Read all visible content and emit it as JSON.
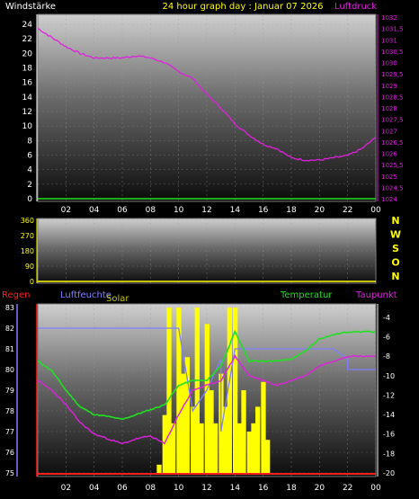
{
  "header": {
    "left_label": "Windstärke",
    "title": "24 hour graph day : Januar 07 2026",
    "right_label": "Luftdruck"
  },
  "colors": {
    "background": "#000000",
    "pressure": "#e020e0",
    "temperature": "#20e020",
    "dewpoint": "#e020e0",
    "humidity": "#7f7fff",
    "solar": "#ffff00",
    "rain": "#ff2020",
    "wind": "#20e020",
    "direction": "#ffff00",
    "regen_label": "#ff2020",
    "luftfeuchte_label": "#7f7fff",
    "solar_label": "#c8c800",
    "temperatur_label": "#20e020",
    "taupunkt_label": "#e020e0",
    "axis_left_text": "#ffffff",
    "axis_right_text": "#e020e0",
    "humidity_axis_text": "#ffffff",
    "direction_axis_text": "#ffff00"
  },
  "x_ticks": [
    "02",
    "04",
    "06",
    "08",
    "10",
    "12",
    "14",
    "16",
    "18",
    "20",
    "22",
    "00"
  ],
  "compass": [
    "N",
    "W",
    "S",
    "O",
    "N"
  ],
  "bottom_labels": {
    "regen": "Regen",
    "luftfeuchte": "Luftfeuchte",
    "solar": "Solar",
    "temperatur": "Temperatur",
    "taupunkt": "Taupunkt"
  },
  "chart_data": [
    {
      "type": "line",
      "name": "pressure-wind",
      "x_range": [
        0,
        24
      ],
      "left_axis": {
        "ticks": [
          "0",
          "2",
          "4",
          "6",
          "8",
          "10",
          "12",
          "14",
          "16",
          "18",
          "20",
          "22",
          "24"
        ],
        "ylim": [
          0,
          25
        ]
      },
      "right_axis": {
        "ticks": [
          "1024",
          "1024,5",
          "1025",
          "1025,5",
          "1026",
          "1026,5",
          "1027",
          "1027,5",
          "1028",
          "1028,5",
          "1029",
          "1029,5",
          "1030",
          "1030,5",
          "1031",
          "1031,5",
          "1032"
        ],
        "ylim": [
          1024,
          1032
        ]
      },
      "series": [
        {
          "name": "Luftdruck",
          "axis": "right",
          "x": [
            0,
            1,
            2,
            3,
            4,
            5,
            6,
            7,
            8,
            9,
            10,
            11,
            12,
            13,
            14,
            15,
            16,
            17,
            18,
            19,
            20,
            21,
            22,
            23,
            24
          ],
          "y": [
            1031.5,
            1031.1,
            1030.7,
            1030.4,
            1030.2,
            1030.2,
            1030.2,
            1030.3,
            1030.2,
            1030.0,
            1029.6,
            1029.3,
            1028.6,
            1028.0,
            1027.3,
            1026.8,
            1026.4,
            1026.2,
            1025.8,
            1025.7,
            1025.7,
            1025.8,
            1025.9,
            1026.2,
            1026.7
          ]
        },
        {
          "name": "Windstärke",
          "axis": "left",
          "x": [
            0,
            24
          ],
          "y": [
            0,
            0
          ]
        }
      ]
    },
    {
      "type": "line",
      "name": "wind-direction",
      "x_range": [
        0,
        24
      ],
      "y_axis": {
        "ticks": [
          "0",
          "90",
          "180",
          "270",
          "360"
        ],
        "ylim": [
          0,
          360
        ]
      },
      "series": [
        {
          "name": "Windrichtung",
          "x": [
            0,
            24
          ],
          "y": [
            0,
            0
          ]
        }
      ]
    },
    {
      "type": "line",
      "name": "temperature-humidity-solar",
      "x_range": [
        0,
        24
      ],
      "left_axis": {
        "ticks": [
          "75",
          "76",
          "77",
          "78",
          "79",
          "80",
          "81",
          "82",
          "83"
        ],
        "ylim": [
          75,
          83
        ]
      },
      "right_axis": {
        "ticks": [
          "-20",
          "-18",
          "-16",
          "-14",
          "-12",
          "-10",
          "-8",
          "-6",
          "-4"
        ],
        "ylim": [
          -20,
          -3
        ]
      },
      "series": [
        {
          "name": "Temperatur",
          "axis": "right",
          "x": [
            0,
            1,
            2,
            3,
            4,
            5,
            6,
            7,
            8,
            9,
            10,
            11,
            12,
            13,
            14,
            15,
            16,
            17,
            18,
            19,
            20,
            21,
            22,
            23,
            24
          ],
          "y": [
            -8.5,
            -9.5,
            -11.5,
            -13.2,
            -14.0,
            -14.2,
            -14.5,
            -14.0,
            -13.5,
            -13.0,
            -11.0,
            -10.5,
            -10.5,
            -9.0,
            -5.5,
            -8.5,
            -8.5,
            -8.5,
            -8.3,
            -7.5,
            -6.2,
            -5.8,
            -5.5,
            -5.5,
            -5.5
          ]
        },
        {
          "name": "Taupunkt",
          "axis": "right",
          "x": [
            0,
            1,
            2,
            3,
            4,
            5,
            6,
            7,
            8,
            9,
            10,
            11,
            12,
            13,
            14,
            15,
            16,
            17,
            18,
            19,
            20,
            21,
            22,
            23,
            24
          ],
          "y": [
            -10.5,
            -11.5,
            -13.0,
            -14.8,
            -16.0,
            -16.5,
            -17.0,
            -16.5,
            -16.2,
            -17.0,
            -14.0,
            -11.5,
            -11.0,
            -10.5,
            -8.0,
            -10.0,
            -10.5,
            -11.0,
            -10.5,
            -10.0,
            -9.0,
            -8.5,
            -8.0,
            -8.0,
            -8.0
          ]
        },
        {
          "name": "Luftfeuchte",
          "axis": "left",
          "x": [
            0,
            1,
            2,
            2,
            3,
            4,
            5,
            6,
            7,
            8,
            9,
            10,
            11,
            12,
            13,
            13,
            14,
            15,
            16,
            17,
            18,
            19,
            20,
            21,
            22,
            22,
            23,
            24
          ],
          "y": [
            82.0,
            82.0,
            82.0,
            82.0,
            82.0,
            82.0,
            82.0,
            82.0,
            82.0,
            82.0,
            82.0,
            82.0,
            78.0,
            79.0,
            80.5,
            77.0,
            81.0,
            81.0,
            81.0,
            81.0,
            81.0,
            81.0,
            81.0,
            81.0,
            80.5,
            80.0,
            80.0,
            80.0
          ]
        },
        {
          "name": "Solar",
          "axis": "none",
          "x": [
            8.6,
            9.0,
            9.3,
            9.6,
            10.0,
            10.3,
            10.6,
            11.0,
            11.3,
            11.6,
            12.0,
            12.3,
            12.6,
            13.0,
            13.3,
            13.6,
            14.0,
            14.3,
            14.6,
            15.0,
            15.3,
            15.6,
            16.0,
            16.3,
            16.6
          ],
          "y": [
            0.05,
            0.35,
            1.0,
            0.3,
            1.0,
            0.6,
            0.7,
            0.4,
            1.0,
            0.3,
            0.9,
            0.5,
            0.3,
            0.6,
            0.4,
            1.0,
            1.0,
            0.3,
            0.5,
            0.25,
            0.3,
            0.4,
            0.55,
            0.2,
            0.0
          ]
        },
        {
          "name": "Regen",
          "axis": "none",
          "x": [
            0,
            24
          ],
          "y": [
            0,
            0
          ]
        }
      ]
    }
  ]
}
